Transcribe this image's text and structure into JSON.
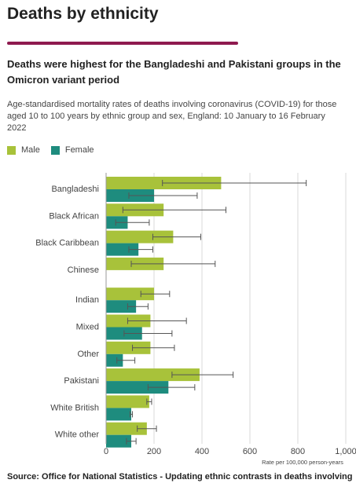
{
  "page": {
    "title": "Deaths by ethnicity",
    "headline": "Deaths were highest for the Bangladeshi and Pakistani groups in the Omicron variant period",
    "subtitle": "Age-standardised mortality rates of deaths involving coronavirus (COVID-19) for those aged 10 to 100 years by ethnic group and sex, England: 10 January to 16 February 2022",
    "source": "Source: Office for National Statistics - Updating ethnic contrasts in deaths involving"
  },
  "colors": {
    "male": "#a8c23a",
    "female": "#1e8c7e",
    "accent": "#8e1a4f",
    "error_bar": "#555555"
  },
  "chart_data": {
    "type": "bar",
    "orientation": "horizontal",
    "title": "",
    "xlabel": "Rate per 100,000 person-years",
    "ylabel": "",
    "xlim": [
      0,
      1000
    ],
    "xticks": [
      0,
      200,
      400,
      600,
      800,
      1000
    ],
    "xtick_labels": [
      "0",
      "200",
      "400",
      "600",
      "800",
      "1,000"
    ],
    "grid": "vertical",
    "legend": "top-left",
    "categories": [
      "Bangladeshi",
      "Black African",
      "Black Caribbean",
      "Chinese",
      "Indian",
      "Mixed",
      "Other",
      "Pakistani",
      "White British",
      "White other"
    ],
    "series": [
      {
        "name": "Male",
        "values": [
          480,
          240,
          280,
          240,
          200,
          185,
          185,
          390,
          180,
          170
        ],
        "ci_low": [
          235,
          70,
          195,
          105,
          145,
          90,
          110,
          275,
          170,
          130
        ],
        "ci_high": [
          835,
          500,
          395,
          455,
          265,
          335,
          285,
          530,
          190,
          210
        ]
      },
      {
        "name": "Female",
        "values": [
          200,
          90,
          135,
          null,
          125,
          150,
          70,
          260,
          105,
          105
        ],
        "ci_low": [
          95,
          40,
          95,
          null,
          90,
          75,
          45,
          175,
          100,
          85
        ],
        "ci_high": [
          380,
          180,
          195,
          null,
          175,
          275,
          120,
          370,
          110,
          125
        ]
      }
    ]
  }
}
